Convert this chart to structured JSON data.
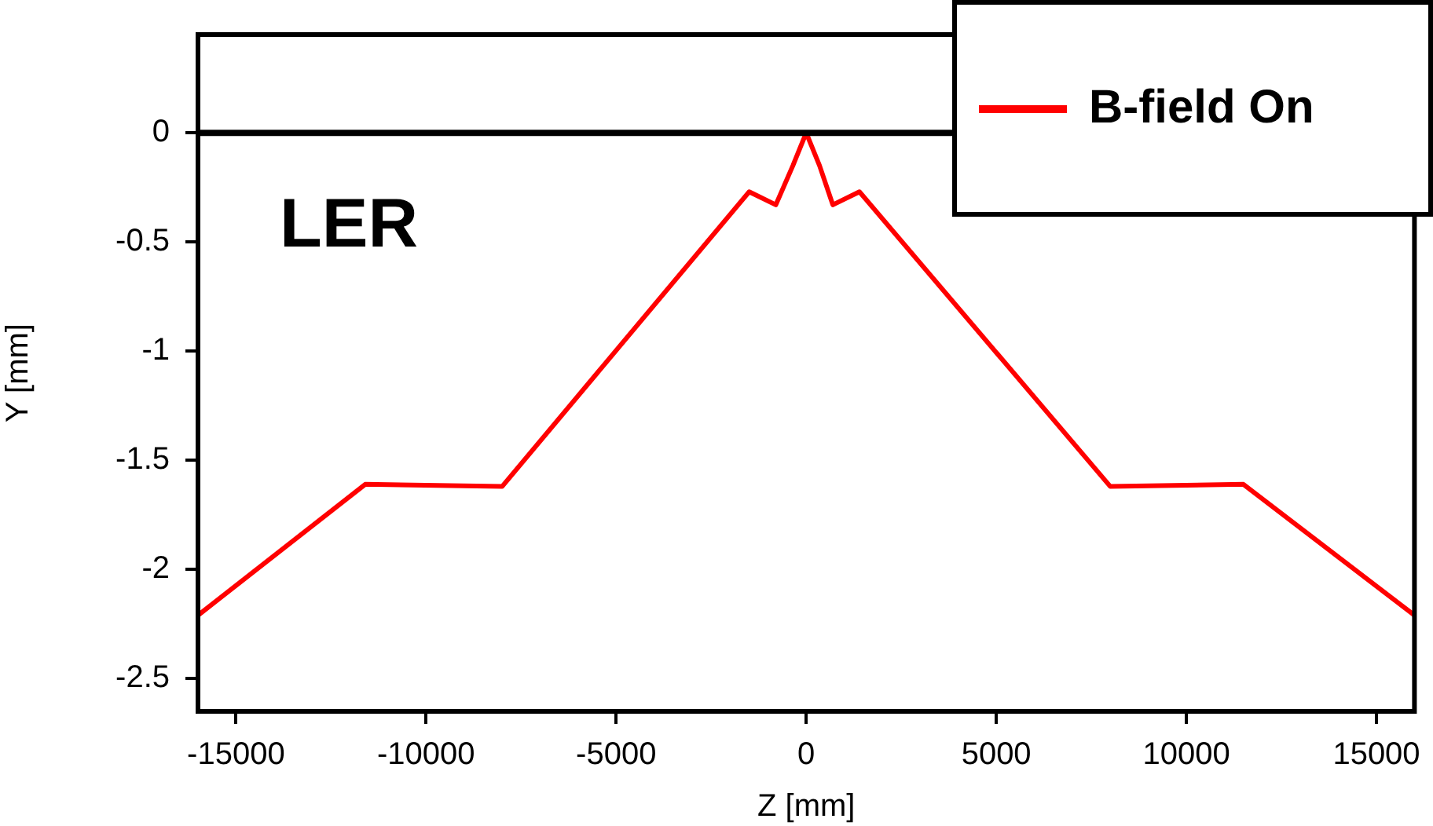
{
  "chart_data": {
    "type": "line",
    "xlabel": "Z [mm]",
    "ylabel": "Y [mm]",
    "annotations": [
      "LER"
    ],
    "xlim": [
      -16000,
      16000
    ],
    "xticks": [
      -15000,
      -10000,
      -5000,
      0,
      5000,
      10000,
      15000
    ],
    "ylim": [
      -2.65,
      0.45
    ],
    "yticks": [
      -2.5,
      -2,
      -1.5,
      -1,
      -0.5,
      0
    ],
    "legend": "top right",
    "line_style": "solid",
    "marker": "none",
    "ref_lines": [
      {
        "axis": "y",
        "value": 0,
        "color": "#000000"
      }
    ],
    "series": [
      {
        "name": "B-field On",
        "color": "#ff0000",
        "x": [
          -16000,
          -11600,
          -8000,
          -1500,
          -800,
          -350,
          0,
          350,
          700,
          1400,
          8000,
          11500,
          16000
        ],
        "values": [
          -2.21,
          -1.61,
          -1.62,
          -0.27,
          -0.33,
          -0.15,
          0,
          -0.15,
          -0.33,
          -0.27,
          -1.62,
          -1.61,
          -2.21
        ]
      }
    ]
  }
}
